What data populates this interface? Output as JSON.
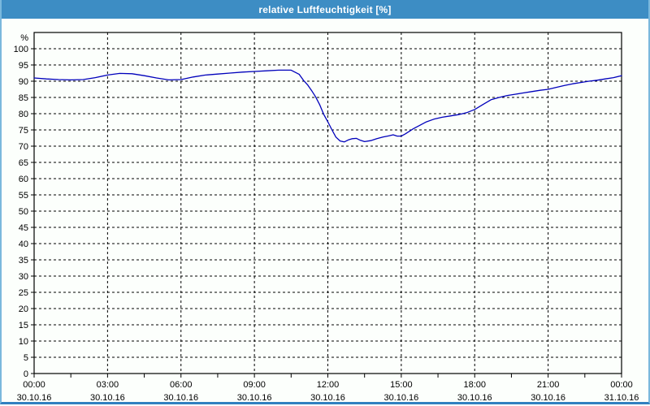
{
  "window": {
    "title": "relative Luftfeuchtigkeit [%]"
  },
  "colors": {
    "titlebar_bg": "#3d8dc4",
    "titlebar_text": "#ffffff",
    "chart_bg": "#fcfffc",
    "plot_border": "#000000",
    "gridline": "#000000",
    "line": "#0000bb",
    "outer_border_light": "#7ab8dd",
    "outer_border_bottom": "#3180c0"
  },
  "chart_data": {
    "type": "line",
    "title": "relative Luftfeuchtigkeit [%]",
    "xlabel": "",
    "ylabel": "%",
    "ylim": [
      0,
      100
    ],
    "y_tick_step": 5,
    "y_tick_labels": [
      "0",
      "5",
      "10",
      "15",
      "20",
      "25",
      "30",
      "35",
      "40",
      "45",
      "50",
      "55",
      "60",
      "65",
      "70",
      "75",
      "80",
      "85",
      "90",
      "95",
      "100"
    ],
    "y_unit_label": "%",
    "xlim_hours": [
      0,
      24
    ],
    "x_major_step_hours": 3,
    "x_minor_step_hours": 1.5,
    "grid": true,
    "grid_style": "dashed",
    "legend": "none",
    "x_ticks": [
      {
        "time": "00:00",
        "date": "30.10.16"
      },
      {
        "time": "03:00",
        "date": "30.10.16"
      },
      {
        "time": "06:00",
        "date": "30.10.16"
      },
      {
        "time": "09:00",
        "date": "30.10.16"
      },
      {
        "time": "12:00",
        "date": "30.10.16"
      },
      {
        "time": "15:00",
        "date": "30.10.16"
      },
      {
        "time": "18:00",
        "date": "30.10.16"
      },
      {
        "time": "21:00",
        "date": "30.10.16"
      },
      {
        "time": "00:00",
        "date": "31.10.16"
      }
    ],
    "series": [
      {
        "name": "relative Luftfeuchtigkeit",
        "color": "#0000bb",
        "points": [
          [
            0,
            91.0
          ],
          [
            0.5,
            90.7
          ],
          [
            1,
            90.5
          ],
          [
            1.5,
            90.4
          ],
          [
            2,
            90.5
          ],
          [
            2.5,
            91.1
          ],
          [
            3,
            91.9
          ],
          [
            3.5,
            92.4
          ],
          [
            4,
            92.3
          ],
          [
            4.5,
            91.7
          ],
          [
            5,
            91.0
          ],
          [
            5.5,
            90.4
          ],
          [
            6,
            90.5
          ],
          [
            6.5,
            91.3
          ],
          [
            7,
            91.9
          ],
          [
            7.5,
            92.2
          ],
          [
            8,
            92.5
          ],
          [
            8.5,
            92.8
          ],
          [
            9,
            93.0
          ],
          [
            9.5,
            93.2
          ],
          [
            10,
            93.4
          ],
          [
            10.5,
            93.4
          ],
          [
            10.83,
            92.1
          ],
          [
            11,
            90.3
          ],
          [
            11.17,
            88.9
          ],
          [
            11.33,
            87.2
          ],
          [
            11.5,
            85.2
          ],
          [
            11.67,
            82.7
          ],
          [
            11.83,
            79.8
          ],
          [
            12,
            77.5
          ],
          [
            12.17,
            75.0
          ],
          [
            12.33,
            72.8
          ],
          [
            12.5,
            71.6
          ],
          [
            12.67,
            71.3
          ],
          [
            12.83,
            71.9
          ],
          [
            13,
            72.3
          ],
          [
            13.17,
            72.4
          ],
          [
            13.33,
            71.8
          ],
          [
            13.5,
            71.4
          ],
          [
            13.75,
            71.7
          ],
          [
            14,
            72.3
          ],
          [
            14.25,
            72.8
          ],
          [
            14.5,
            73.2
          ],
          [
            14.67,
            73.5
          ],
          [
            14.83,
            73.1
          ],
          [
            15,
            73.1
          ],
          [
            15.17,
            73.8
          ],
          [
            15.5,
            75.4
          ],
          [
            15.75,
            76.4
          ],
          [
            16,
            77.4
          ],
          [
            16.33,
            78.3
          ],
          [
            16.67,
            78.9
          ],
          [
            17,
            79.3
          ],
          [
            17.33,
            79.7
          ],
          [
            17.67,
            80.3
          ],
          [
            18,
            81.3
          ],
          [
            18.33,
            82.8
          ],
          [
            18.67,
            84.3
          ],
          [
            19,
            85.0
          ],
          [
            19.33,
            85.6
          ],
          [
            19.67,
            86.0
          ],
          [
            20,
            86.4
          ],
          [
            20.33,
            86.8
          ],
          [
            20.67,
            87.2
          ],
          [
            21,
            87.5
          ],
          [
            21.33,
            88.1
          ],
          [
            21.67,
            88.7
          ],
          [
            22,
            89.2
          ],
          [
            22.33,
            89.6
          ],
          [
            22.67,
            90.0
          ],
          [
            23,
            90.3
          ],
          [
            23.33,
            90.7
          ],
          [
            23.67,
            91.1
          ],
          [
            24,
            91.7
          ]
        ]
      }
    ]
  }
}
